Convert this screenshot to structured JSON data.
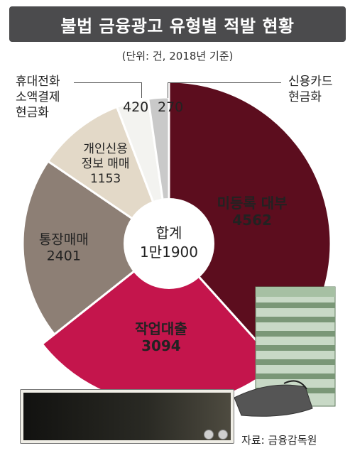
{
  "header": {
    "title": "불법 금융광고 유형별 적발 현황",
    "unit_note": "(단위: 건, 2018년 기준)"
  },
  "chart_data": {
    "type": "pie",
    "total_label_line1": "합계",
    "total_label_line2": "1만1900",
    "slices": [
      {
        "label_lines": [
          "미등록 대부"
        ],
        "value": 4562,
        "value_text": "4562",
        "color": "#5c0d1e"
      },
      {
        "label_lines": [
          "작업대출"
        ],
        "value": 3094,
        "value_text": "3094",
        "color": "#c4154c"
      },
      {
        "label_lines": [
          "통장매매"
        ],
        "value": 2401,
        "value_text": "2401",
        "color": "#8d7f75"
      },
      {
        "label_lines": [
          "개인신용",
          "정보 매매"
        ],
        "value": 1153,
        "value_text": "1153",
        "color": "#e3d9c8"
      },
      {
        "label_lines": [
          "휴대전화",
          "소액결제",
          "현금화"
        ],
        "value": 420,
        "value_text": "420",
        "color": "#f3f3f0"
      },
      {
        "label_lines": [
          "신용카드",
          "현금화"
        ],
        "value": 270,
        "value_text": "270",
        "color": "#c9c9c9"
      }
    ]
  },
  "callouts": {
    "mobile": {
      "line1": "휴대전화",
      "line2": "소액결제",
      "line3": "현금화",
      "value": "420"
    },
    "card": {
      "line1": "신용카드",
      "line2": "현금화",
      "value": "270"
    }
  },
  "source": "자료: 금융감독원"
}
